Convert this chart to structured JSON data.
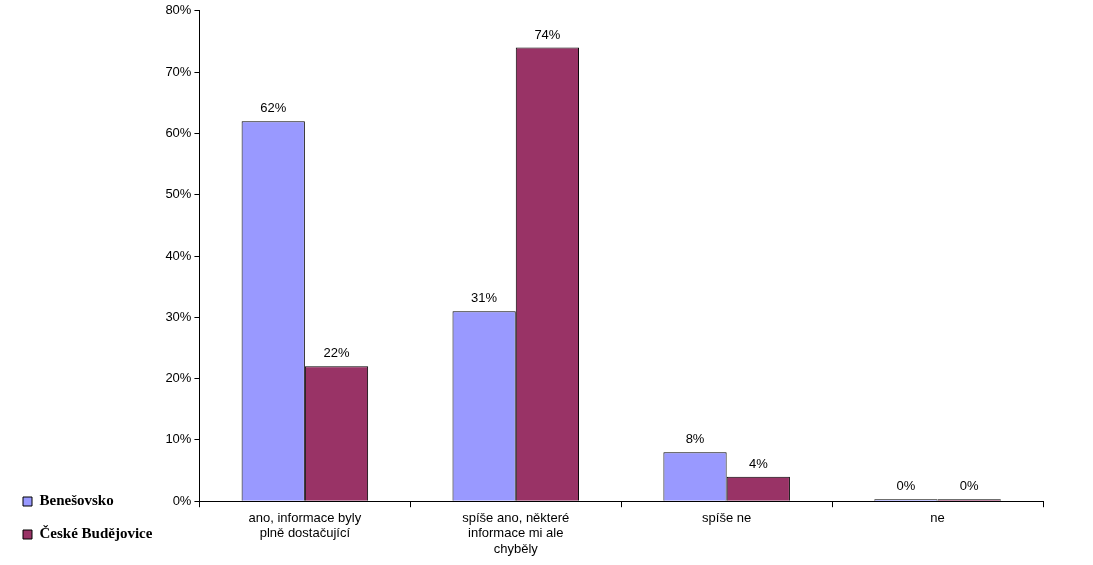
{
  "chart_data": {
    "type": "bar",
    "categories": [
      "ano, informace byly plně dostačující",
      "spíše ano, některé informace mi ale chyběly",
      "spíše ne",
      "ne"
    ],
    "series": [
      {
        "name": "Benešovsko",
        "color": "#9999ff",
        "values": [
          62,
          31,
          8,
          0
        ],
        "value_labels": [
          "62%",
          "31%",
          "8%",
          "0%"
        ]
      },
      {
        "name": "České Budějovice",
        "color": "#993366",
        "values": [
          22,
          74,
          4,
          0
        ],
        "value_labels": [
          "22%",
          "74%",
          "4%",
          "0%"
        ]
      }
    ],
    "ylim": [
      0,
      80
    ],
    "yticks": [
      {
        "value": 0,
        "label": "0%"
      },
      {
        "value": 10,
        "label": "10%"
      },
      {
        "value": 20,
        "label": "20%"
      },
      {
        "value": 30,
        "label": "30%"
      },
      {
        "value": 40,
        "label": "40%"
      },
      {
        "value": 50,
        "label": "50%"
      },
      {
        "value": 60,
        "label": "60%"
      },
      {
        "value": 70,
        "label": "70%"
      },
      {
        "value": 80,
        "label": "80%"
      }
    ],
    "grid": false,
    "legend": "left"
  }
}
